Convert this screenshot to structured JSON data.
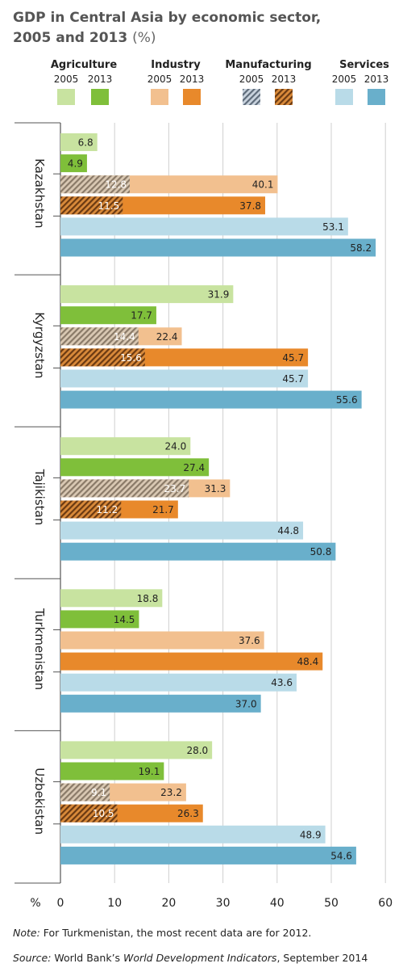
{
  "title": {
    "line1": "GDP in Central Asia by economic sector,",
    "line2": "2005 and 2013",
    "unit": "(%)"
  },
  "legend": [
    {
      "name": "Agriculture",
      "years": [
        "2005",
        "2013"
      ],
      "colors": [
        "#c8e3a0",
        "#7fbf3a"
      ],
      "hatched": false
    },
    {
      "name": "Industry",
      "years": [
        "2005",
        "2013"
      ],
      "colors": [
        "#f2c08f",
        "#e8892b"
      ],
      "hatched": false
    },
    {
      "name": "Manufacturing",
      "years": [
        "2005",
        "2013"
      ],
      "colors": [
        "#9aa6b4",
        "#b06a22"
      ],
      "hatched": true
    },
    {
      "name": "Services",
      "years": [
        "2005",
        "2013"
      ],
      "colors": [
        "#b9dbe8",
        "#69afcb"
      ],
      "hatched": false
    }
  ],
  "chart_data": {
    "type": "bar",
    "orientation": "horizontal",
    "unit_label": "%",
    "xlim": [
      0,
      60
    ],
    "xticks": [
      "0",
      "10",
      "20",
      "30",
      "40",
      "50",
      "60"
    ],
    "grid": true,
    "countries": [
      {
        "name": "Kazakhstan",
        "agriculture": [
          "6.8",
          "4.9"
        ],
        "industry": [
          "40.1",
          "37.8"
        ],
        "manufacturing": [
          "12.8",
          "11.5"
        ],
        "services": [
          "53.1",
          "58.2"
        ]
      },
      {
        "name": "Kyrgyzstan",
        "agriculture": [
          "31.9",
          "17.7"
        ],
        "industry": [
          "22.4",
          "45.7"
        ],
        "manufacturing": [
          "14.4",
          "15.6"
        ],
        "services": [
          "45.7",
          "55.6"
        ]
      },
      {
        "name": "Tajikistan",
        "agriculture": [
          "24.0",
          "27.4"
        ],
        "industry": [
          "31.3",
          "21.7"
        ],
        "manufacturing": [
          "23.7",
          "11.2"
        ],
        "services": [
          "44.8",
          "50.8"
        ]
      },
      {
        "name": "Turkmenistan",
        "agriculture": [
          "18.8",
          "14.5"
        ],
        "industry": [
          "37.6",
          "48.4"
        ],
        "manufacturing": null,
        "services": [
          "43.6",
          "37.0"
        ]
      },
      {
        "name": "Uzbekistan",
        "agriculture": [
          "28.0",
          "19.1"
        ],
        "industry": [
          "23.2",
          "26.3"
        ],
        "manufacturing": [
          "9.1",
          "10.5"
        ],
        "services": [
          "48.9",
          "54.6"
        ]
      }
    ]
  },
  "note": {
    "label": "Note:",
    "text": " For Turkmenistan, the most recent data are for 2012."
  },
  "source": {
    "label": "Source:",
    "text1": " World Bank’s ",
    "italic": "World Development Indicators",
    "text2": ", September 2014"
  }
}
